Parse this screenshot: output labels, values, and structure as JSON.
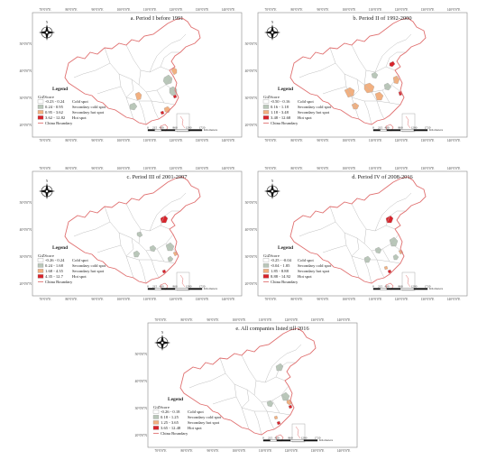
{
  "colors": {
    "cold": "#ffffff",
    "secondary_cold": "#b9c7b9",
    "secondary_hot": "#f2b080",
    "hot": "#d9232b",
    "boundary": "#e07070",
    "province_line": "#b8b8b8",
    "frame": "#888888"
  },
  "icons": [
    "north-arrow-icon"
  ],
  "common": {
    "top_ticks": [
      "70°0'0\"E",
      "80°0'0\"E",
      "90°0'0\"E",
      "100°0'0\"E",
      "110°0'0\"E",
      "120°0'0\"E",
      "130°0'0\"E",
      "140°0'0\"E"
    ],
    "bottom_ticks": [
      "70°0'0\"E",
      "80°0'0\"E",
      "90°0'0\"E",
      "100°0'0\"E",
      "110°0'0\"E",
      "120°0'0\"E",
      "130°0'0\"E",
      "140°0'0\"E"
    ],
    "left_ticks": [
      "50°0'0\"N",
      "40°0'0\"N",
      "30°0'0\"N",
      "20°0'0\"N"
    ],
    "legend_title": "Legend",
    "gizscore_label": "GiZScore",
    "boundary_label": "China Boundary",
    "km_label": "Kilometers",
    "north_label": "N"
  },
  "panels": [
    {
      "title": "a. Period I before 1991",
      "legend": [
        {
          "range": "-0.23 - 0.24",
          "label": "Cold spot",
          "class": "cold"
        },
        {
          "range": "0.24 - 0.95",
          "label": "Secondary cold spot",
          "class": "secondary_cold"
        },
        {
          "range": "0.95 - 3.62",
          "label": "Secondary hot spot",
          "class": "secondary_hot"
        },
        {
          "range": "3.62 - 12.82",
          "label": "Hot spot",
          "class": "hot"
        }
      ],
      "scale": [
        "0",
        "215",
        "430",
        "860",
        "1290",
        "1720"
      ]
    },
    {
      "title": "b. Period II of  1992-2000",
      "legend": [
        {
          "range": "-0.50 - 0.16",
          "label": "Cold spot",
          "class": "cold"
        },
        {
          "range": "0.16 - 1.18",
          "label": "Secondary cold spot",
          "class": "secondary_cold"
        },
        {
          "range": "1.18 - 3.48",
          "label": "Secondary hot spot",
          "class": "secondary_hot"
        },
        {
          "range": "3.48 - 12.68",
          "label": "Hot spot",
          "class": "hot"
        }
      ],
      "scale": [
        "0",
        "215",
        "430",
        "860",
        "1290",
        "1720"
      ]
    },
    {
      "title": "c. Period III of  2001-2007",
      "legend": [
        {
          "range": "-0.26 - 0.24",
          "label": "Cold spot",
          "class": "cold"
        },
        {
          "range": "0.24 - 1.68",
          "label": "Secondary cold spot",
          "class": "secondary_cold"
        },
        {
          "range": "1.68 - 4.35",
          "label": "Secondary hot spot",
          "class": "secondary_hot"
        },
        {
          "range": "4.35 - 12.7",
          "label": "Hot spot",
          "class": "hot"
        }
      ],
      "scale": [
        "0",
        "215",
        "430",
        "860",
        "1290",
        "1720"
      ]
    },
    {
      "title": "d. Period IV of  2008-2016",
      "legend": [
        {
          "range": "-0.25 - -0.04",
          "label": "Cold spot",
          "class": "cold"
        },
        {
          "range": "-0.04 - 1.85",
          "label": "Secondary cold spot",
          "class": "secondary_cold"
        },
        {
          "range": "1.85 - 8.88",
          "label": "Secondary hot spot",
          "class": "secondary_hot"
        },
        {
          "range": "8.88 - 14.92",
          "label": "Hot spot",
          "class": "hot"
        }
      ],
      "scale": [
        "0",
        "215",
        "430",
        "860",
        "1290",
        "1720"
      ]
    },
    {
      "title": "e. All companies listed till 2016",
      "legend": [
        {
          "range": "-0.26 - 0.18",
          "label": "Cold spot",
          "class": "cold"
        },
        {
          "range": "0.18 - 1.25",
          "label": "Secondary cold spot",
          "class": "secondary_cold"
        },
        {
          "range": "1.25 - 3.65",
          "label": "Secondary hot spot",
          "class": "secondary_hot"
        },
        {
          "range": "3.65 - 12.48",
          "label": "Hot spot",
          "class": "hot"
        }
      ],
      "scale": [
        "0",
        "215",
        "430",
        "860",
        "1290",
        "1720"
      ]
    }
  ]
}
